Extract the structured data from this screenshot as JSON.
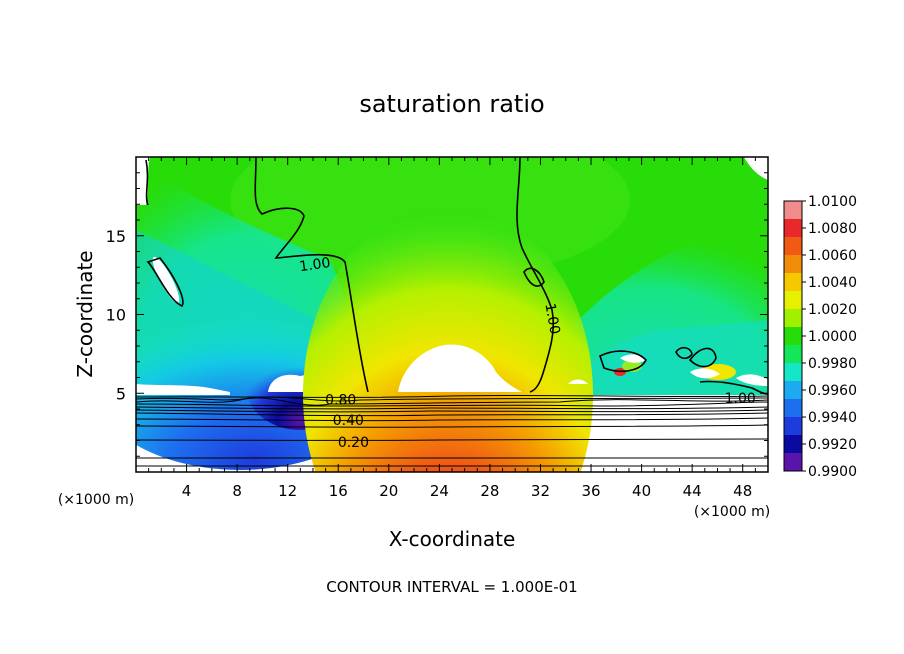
{
  "chart_data": {
    "type": "heatmap",
    "title": "saturation ratio",
    "xlabel": "X-coordinate",
    "ylabel": "Z-coordinate",
    "x_unit_left": "(×1000 m)",
    "x_unit_right": "(×1000 m)",
    "xlim": [
      0,
      50
    ],
    "ylim": [
      0,
      20
    ],
    "xticks": [
      4,
      8,
      12,
      16,
      20,
      24,
      28,
      32,
      36,
      40,
      44,
      48
    ],
    "yticks": [
      5,
      10,
      15
    ],
    "footer": "CONTOUR INTERVAL = 1.000E-01",
    "colorbar": {
      "min": 0.99,
      "max": 1.01,
      "labels": [
        "1.0100",
        "1.0080",
        "1.0060",
        "1.0040",
        "1.0020",
        "1.0000",
        "0.9980",
        "0.9960",
        "0.9940",
        "0.9920",
        "0.9900"
      ],
      "colors": [
        "#f08c8c",
        "#e8282a",
        "#f05a14",
        "#f08c0a",
        "#f5c800",
        "#e6f000",
        "#a0f000",
        "#28dc0a",
        "#14e65a",
        "#14e6c8",
        "#1eaaf0",
        "#1e6ef0",
        "#1e3cdc",
        "#0a0aa0",
        "#5a14aa"
      ]
    },
    "contour_labels": [
      {
        "text": "1.00",
        "x": 14.2,
        "z": 13.2
      },
      {
        "text": "1.00",
        "x": 32.6,
        "z": 10.0
      },
      {
        "text": "1.00",
        "x": 47.8,
        "z": 4.7
      },
      {
        "text": "0.80",
        "x": 16.2,
        "z": 4.6
      },
      {
        "text": "0.40",
        "x": 16.8,
        "z": 3.3
      },
      {
        "text": "0.20",
        "x": 17.2,
        "z": 1.9
      }
    ]
  }
}
